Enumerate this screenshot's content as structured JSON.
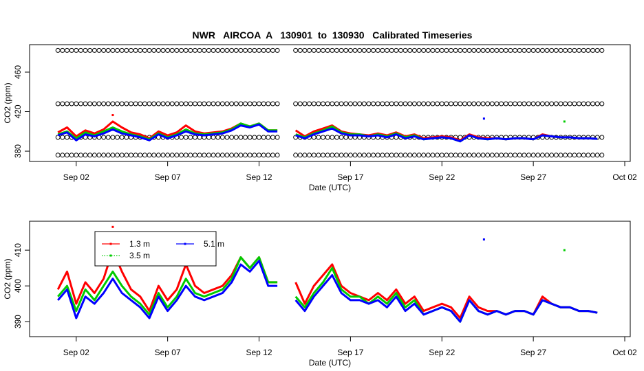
{
  "chart_data": [
    {
      "type": "scatter",
      "title": "NWR   AIRCOA  A   130901  to  130930   Calibrated Timeseries",
      "xlabel": "Date (UTC)",
      "ylabel": "CO2 (ppm)",
      "xlim": [
        -0.55,
        32.3
      ],
      "xticks": [
        {
          "value": 2,
          "label": "Sep 02"
        },
        {
          "value": 7,
          "label": "Sep 07"
        },
        {
          "value": 12,
          "label": "Sep 12"
        },
        {
          "value": 17,
          "label": "Sep 17"
        },
        {
          "value": 22,
          "label": "Sep 22"
        },
        {
          "value": 27,
          "label": "Sep 27"
        },
        {
          "value": 32,
          "label": "Oct 02"
        }
      ],
      "ylim": [
        369.6,
        487.8
      ],
      "yticks": [
        380,
        420,
        460
      ],
      "reference": {
        "levels": [
          376,
          394,
          428,
          482
        ],
        "x": [
          1,
          1.25,
          1.5,
          1.75,
          2,
          2.25,
          2.5,
          2.75,
          3,
          3.25,
          3.5,
          3.75,
          4,
          4.25,
          4.5,
          4.75,
          5,
          5.25,
          5.5,
          5.75,
          6,
          6.25,
          6.5,
          6.75,
          7,
          7.25,
          7.5,
          7.75,
          8,
          8.25,
          8.5,
          8.75,
          9,
          9.25,
          9.5,
          9.75,
          10,
          10.25,
          10.5,
          10.75,
          11,
          11.25,
          11.5,
          11.75,
          12,
          12.25,
          12.5,
          12.75,
          13,
          14,
          14.25,
          14.5,
          14.75,
          15,
          15.25,
          15.5,
          15.75,
          16,
          16.25,
          16.5,
          16.75,
          17,
          17.25,
          17.5,
          17.75,
          18,
          18.25,
          18.5,
          18.75,
          19,
          19.25,
          19.5,
          19.75,
          20,
          20.25,
          20.5,
          20.75,
          21,
          21.25,
          21.5,
          21.75,
          22,
          22.25,
          22.5,
          22.75,
          23,
          23.25,
          23.5,
          23.75,
          24,
          24.25,
          24.5,
          24.75,
          25,
          25.25,
          25.5,
          25.75,
          26,
          26.25,
          26.5,
          26.75,
          27,
          27.25,
          27.5,
          27.75,
          28,
          28.25,
          28.5,
          28.75,
          29,
          29.25,
          29.5,
          29.75,
          30,
          30.25,
          30.5,
          30.75
        ]
      }
    },
    {
      "type": "line",
      "xlabel": "Date (UTC)",
      "ylabel": "CO2 (ppm)",
      "xlim": [
        -0.55,
        32.3
      ],
      "xticks": [
        {
          "value": 2,
          "label": "Sep 02"
        },
        {
          "value": 7,
          "label": "Sep 07"
        },
        {
          "value": 12,
          "label": "Sep 12"
        },
        {
          "value": 17,
          "label": "Sep 17"
        },
        {
          "value": 22,
          "label": "Sep 22"
        },
        {
          "value": 27,
          "label": "Sep 27"
        },
        {
          "value": 32,
          "label": "Oct 02"
        }
      ],
      "ylim": [
        385.8,
        418.1
      ],
      "yticks": [
        390,
        400,
        410
      ],
      "legend": "top-left",
      "x": [
        1,
        1.5,
        2,
        2.5,
        3,
        3.5,
        4,
        4.5,
        5,
        5.5,
        6,
        6.5,
        7,
        7.5,
        8,
        8.5,
        9,
        9.5,
        10,
        10.5,
        11,
        11.5,
        12,
        12.5,
        13,
        13.5,
        14,
        14.5,
        15,
        15.5,
        16,
        16.5,
        17,
        17.5,
        18,
        18.5,
        19,
        19.5,
        20,
        20.5,
        21,
        21.5,
        22,
        22.5,
        23,
        23.5,
        24,
        24.5,
        25,
        25.5,
        26,
        26.5,
        27,
        27.5,
        28,
        28.5,
        29,
        29.5,
        30,
        30.5
      ],
      "series": [
        {
          "name": "1.3 m",
          "color": "#ff0000",
          "values": [
            399,
            404,
            395,
            401,
            398,
            402,
            410,
            404,
            399,
            397,
            393,
            400,
            396,
            399,
            406,
            400,
            398,
            399,
            400,
            403,
            408,
            405,
            408,
            401,
            401,
            null,
            401,
            395,
            400,
            403,
            406,
            400,
            398,
            397,
            396,
            398,
            396,
            399,
            395,
            397,
            393,
            394,
            395,
            394,
            391,
            397,
            394,
            393,
            393,
            392,
            393,
            393,
            392,
            397,
            395,
            394,
            394,
            393,
            393,
            392.5
          ],
          "outlier_x": [
            4
          ],
          "outlier_values": [
            416.5
          ]
        },
        {
          "name": "3.5 m",
          "color": "#00cc00",
          "values": [
            397,
            400,
            393,
            399,
            396,
            400,
            404,
            400,
            397,
            395,
            392,
            398,
            394,
            397,
            402,
            398,
            397,
            398,
            399,
            402,
            408,
            405,
            408,
            401,
            401,
            null,
            397,
            394,
            398,
            401,
            405,
            399,
            397,
            397,
            395,
            397,
            395,
            398,
            394,
            396,
            392,
            393,
            394,
            393,
            390,
            396,
            393,
            392,
            393,
            392,
            393,
            393,
            392,
            396,
            395,
            394,
            394,
            393,
            393,
            392.5
          ],
          "outlier_x": [
            28.7
          ],
          "outlier_values": [
            410
          ]
        },
        {
          "name": "5.1 m",
          "color": "#0000ff",
          "values": [
            396,
            399,
            391,
            397,
            395,
            398,
            402,
            398,
            396,
            394,
            391,
            397,
            393,
            396,
            400,
            397,
            396,
            397,
            398,
            401,
            406,
            404,
            407,
            400,
            400,
            null,
            396,
            393,
            397,
            400,
            403,
            398,
            396,
            396,
            395,
            396,
            394,
            397,
            393,
            395,
            392,
            393,
            394,
            393,
            390,
            396,
            393,
            392,
            393,
            392,
            393,
            393,
            392,
            396,
            395,
            394,
            394,
            393,
            393,
            392.5
          ],
          "outlier_x": [
            24.3
          ],
          "outlier_values": [
            413
          ]
        }
      ]
    }
  ]
}
